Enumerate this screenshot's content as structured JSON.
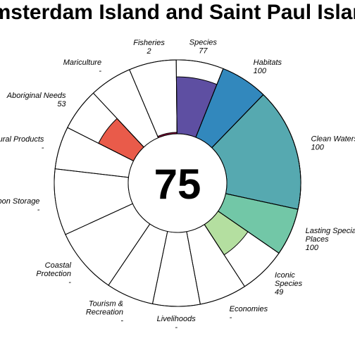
{
  "chart_data": {
    "type": "flower",
    "title": "Amsterdam Island and Saint Paul Island",
    "overall_score": "75",
    "score_max": 100,
    "petals": [
      {
        "label": [
          "Species"
        ],
        "value_text": "77",
        "score": 77,
        "weight": 1,
        "color": "#5e4fa2"
      },
      {
        "label": [
          "Habitats"
        ],
        "value_text": "100",
        "score": 100,
        "weight": 1,
        "color": "#3288bd"
      },
      {
        "label": [
          "Clean Waters"
        ],
        "value_text": "100",
        "score": 100,
        "weight": 2.6,
        "color": "#56a9b0"
      },
      {
        "label": [
          "Lasting Special",
          "Places"
        ],
        "value_text": "100",
        "score": 100,
        "weight": 1,
        "color": "#72c7a7"
      },
      {
        "label": [
          "Iconic",
          "Species"
        ],
        "value_text": "49",
        "score": 49,
        "weight": 1,
        "color": "#b4dfa0"
      },
      {
        "label": [
          "Economies"
        ],
        "value_text": "-",
        "score": null,
        "weight": 1,
        "color": "#ffffff"
      },
      {
        "label": [
          "Livelihoods"
        ],
        "value_text": "-",
        "score": null,
        "weight": 1,
        "color": "#ffffff"
      },
      {
        "label": [
          "Tourism &",
          "Recreation"
        ],
        "value_text": "-",
        "score": null,
        "weight": 1,
        "color": "#ffffff"
      },
      {
        "label": [
          "Coastal",
          "Protection"
        ],
        "value_text": "-",
        "score": null,
        "weight": 1.4,
        "color": "#ffffff"
      },
      {
        "label": [
          "Carbon Storage"
        ],
        "value_text": "-",
        "score": null,
        "weight": 1.4,
        "color": "#ffffff"
      },
      {
        "label": [
          "Natural Products"
        ],
        "value_text": "-",
        "score": null,
        "weight": 0.9,
        "color": "#ffffff"
      },
      {
        "label": [
          "Aboriginal Needs"
        ],
        "value_text": "53",
        "score": 53,
        "weight": 0.9,
        "color": "#e95b4a"
      },
      {
        "label": [
          "Mariculture"
        ],
        "value_text": "-",
        "score": null,
        "weight": 0.9,
        "color": "#ffffff"
      },
      {
        "label": [
          "Fisheries"
        ],
        "value_text": "2",
        "score": 2,
        "weight": 1,
        "color": "#9e0142"
      }
    ]
  }
}
